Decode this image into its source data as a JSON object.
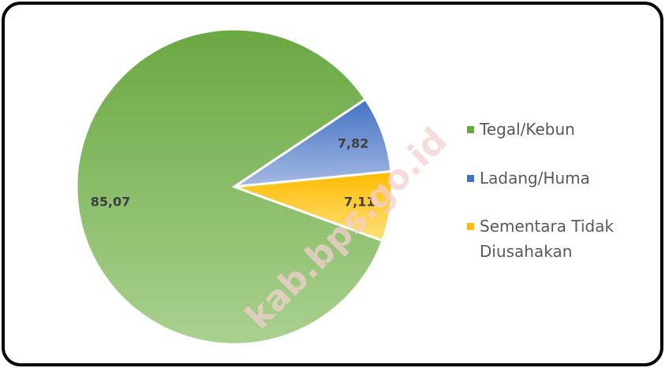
{
  "chart_data": {
    "type": "pie",
    "categories": [
      "Tegal/Kebun",
      "Ladang/Huma",
      "Sementara Tidak Diusahakan"
    ],
    "values": [
      85.07,
      7.82,
      7.11
    ],
    "value_labels": [
      "85,07",
      "7,82",
      "7,11"
    ],
    "colors": [
      [
        "#6aa842",
        "#a9d18e"
      ],
      [
        "#4472c4",
        "#a5b9e3"
      ],
      [
        "#ffbb00",
        "#ffe07a"
      ]
    ],
    "legend": "right",
    "watermark": "kab.bps.go.id"
  }
}
